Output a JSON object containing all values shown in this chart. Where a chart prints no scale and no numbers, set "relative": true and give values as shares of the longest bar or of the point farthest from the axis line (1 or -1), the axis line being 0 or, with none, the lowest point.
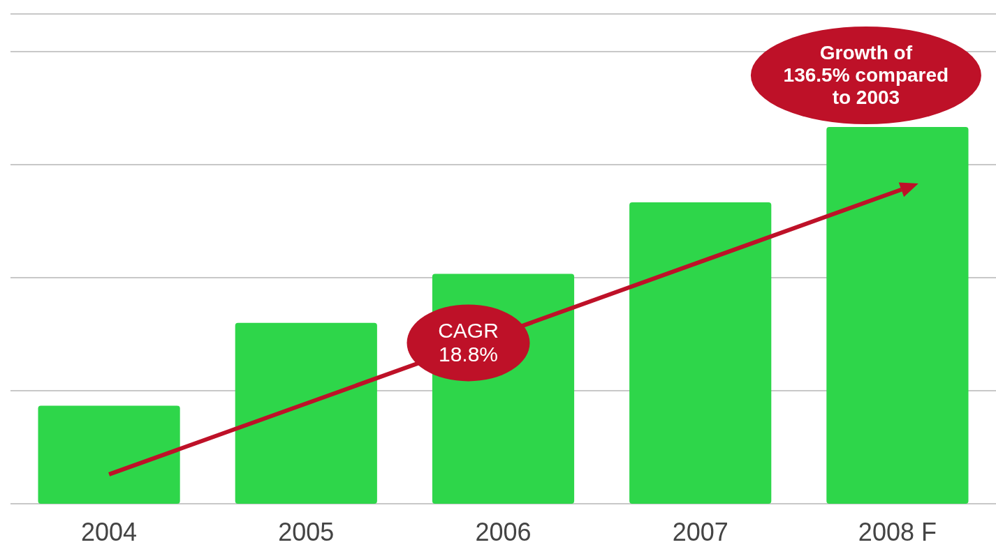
{
  "chart_data": {
    "type": "bar",
    "categories": [
      "2004",
      "2005",
      "2006",
      "2007",
      "2008 F"
    ],
    "values": [
      0.26,
      0.48,
      0.61,
      0.8,
      1
    ],
    "color": "#2ed64a",
    "relative": true,
    "grid": true,
    "annotations": [
      "CAGR\n18.8%",
      "Growth of\n136.5% compared\nto 2003"
    ]
  }
}
